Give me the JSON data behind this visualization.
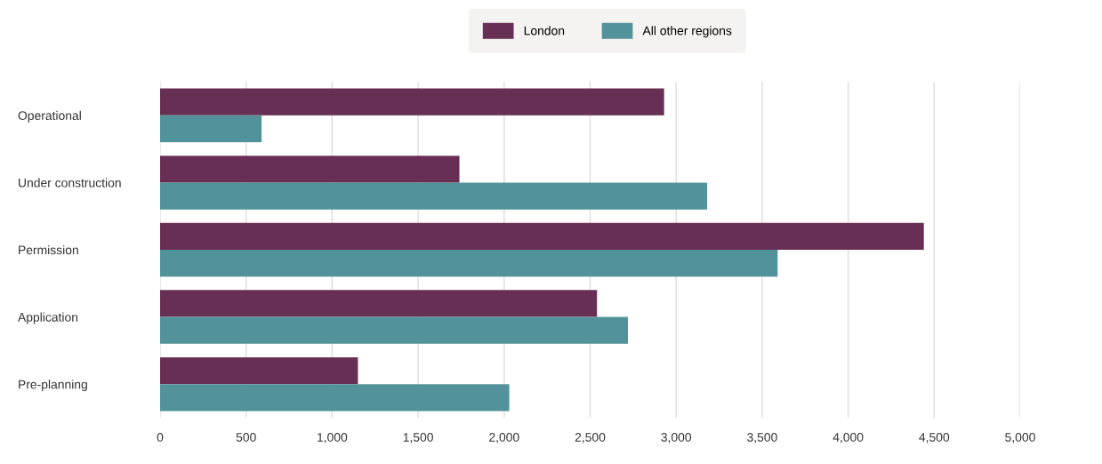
{
  "chart_data": {
    "type": "bar",
    "orientation": "horizontal",
    "categories": [
      "Operational",
      "Under construction",
      "Permission",
      "Application",
      "Pre-planning"
    ],
    "series": [
      {
        "name": "London",
        "color": "#682f54",
        "values": [
          2930,
          1740,
          4440,
          2540,
          1150
        ]
      },
      {
        "name": "All other regions",
        "color": "#52939b",
        "values": [
          590,
          3180,
          3590,
          2720,
          2030
        ]
      }
    ],
    "xlim": [
      0,
      5000
    ],
    "xticks": [
      0,
      500,
      {
        "value": 1000,
        "label": "1,000"
      },
      {
        "value": 1500,
        "label": "1,500"
      },
      {
        "value": 2000,
        "label": "2,000"
      },
      {
        "value": 2500,
        "label": "2,500"
      },
      {
        "value": 3000,
        "label": "3,000"
      },
      {
        "value": 3500,
        "label": "3,500"
      },
      {
        "value": 4000,
        "label": "4,000"
      },
      {
        "value": 4500,
        "label": "4,500"
      },
      {
        "value": 5000,
        "label": "5,000"
      }
    ],
    "grid": "x",
    "legend": "top"
  }
}
